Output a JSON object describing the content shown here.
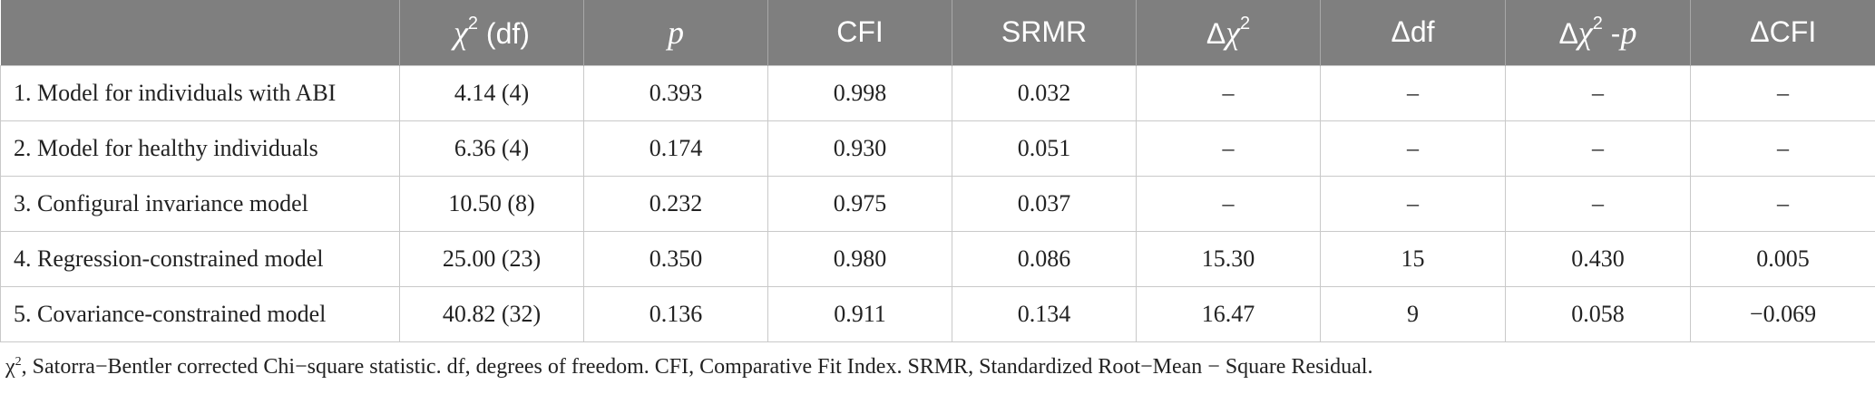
{
  "table": {
    "headers": {
      "label": "",
      "chi_df_symbol": "χ",
      "chi_df_sup": "2",
      "chi_df_rest": " (df)",
      "p": "p",
      "cfi": "CFI",
      "srmr": "SRMR",
      "dchi_delta": "Δ",
      "dchi_symbol": "χ",
      "dchi_sup": "2",
      "ddf": "Δdf",
      "dchip_delta": "Δ",
      "dchip_symbol": "χ",
      "dchip_sup": "2",
      "dchip_rest": " -",
      "dchip_p": "p",
      "dcfi": "ΔCFI"
    },
    "rows": [
      {
        "label": "1. Model for individuals with ABI",
        "chi_df": "4.14 (4)",
        "p": "0.393",
        "cfi": "0.998",
        "srmr": "0.032",
        "dchi": "–",
        "ddf": "–",
        "dchip": "–",
        "dcfi": "–"
      },
      {
        "label": "2. Model for healthy individuals",
        "chi_df": "6.36 (4)",
        "p": "0.174",
        "cfi": "0.930",
        "srmr": "0.051",
        "dchi": "–",
        "ddf": "–",
        "dchip": "–",
        "dcfi": "–"
      },
      {
        "label": "3. Configural invariance model",
        "chi_df": "10.50 (8)",
        "p": "0.232",
        "cfi": "0.975",
        "srmr": "0.037",
        "dchi": "–",
        "ddf": "–",
        "dchip": "–",
        "dcfi": "–"
      },
      {
        "label": "4. Regression-constrained model",
        "chi_df": "25.00 (23)",
        "p": "0.350",
        "cfi": "0.980",
        "srmr": "0.086",
        "dchi": "15.30",
        "ddf": "15",
        "dchip": "0.430",
        "dcfi": "0.005"
      },
      {
        "label": "5. Covariance-constrained model",
        "chi_df": "40.82 (32)",
        "p": "0.136",
        "cfi": "0.911",
        "srmr": "0.134",
        "dchi": "16.47",
        "ddf": "9",
        "dchip": "0.058",
        "dcfi": "−0.069"
      }
    ]
  },
  "footnote": {
    "symbol": "χ",
    "sup": "2",
    "text": ", Satorra−Bentler corrected Chi−square statistic. df, degrees of freedom. CFI, Comparative Fit Index. SRMR, Standardized Root−Mean − Square Residual."
  }
}
